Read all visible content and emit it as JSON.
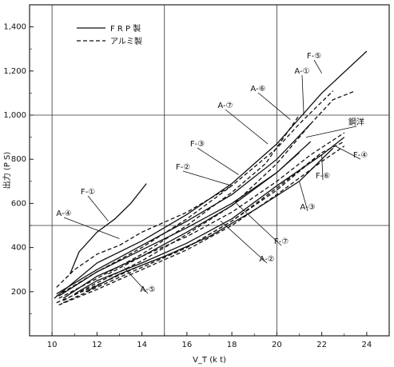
{
  "chart_data": {
    "type": "line",
    "xlabel": "V_T (k t)",
    "ylabel": "出力 (P S)",
    "xlim": [
      9,
      25
    ],
    "ylim": [
      0,
      1500
    ],
    "xticks": [
      "10",
      "12",
      "14",
      "16",
      "18",
      "20",
      "22",
      "24"
    ],
    "yticks": [
      "200",
      "400",
      "600",
      "800",
      "1,000",
      "1,200",
      "1,400"
    ],
    "grid": "major lines at x=10, 15, 20 and y=500, 1000",
    "legend": [
      {
        "label": "F R P 製",
        "style": "solid"
      },
      {
        "label": "アルミ製",
        "style": "dashed"
      }
    ],
    "annotations": [
      "F-⑤",
      "A-①",
      "A-⑥",
      "A-⑦",
      "F-③",
      "F-②",
      "F-①",
      "A-④",
      "A-⑤",
      "F-⑦",
      "A-②",
      "A-③",
      "F-⑥",
      "F-④",
      "鋼洋"
    ],
    "series": [
      {
        "name": "F-①",
        "style": "solid",
        "points": [
          [
            10.8,
            280
          ],
          [
            11.2,
            380
          ],
          [
            12,
            470
          ],
          [
            12.8,
            530
          ],
          [
            13.5,
            600
          ],
          [
            14.2,
            690
          ]
        ]
      },
      {
        "name": "F-⑤",
        "style": "solid",
        "points": [
          [
            10.1,
            170
          ],
          [
            12,
            330
          ],
          [
            14,
            430
          ],
          [
            16,
            550
          ],
          [
            18,
            690
          ],
          [
            20,
            870
          ],
          [
            22,
            1100
          ],
          [
            24,
            1290
          ]
        ]
      },
      {
        "name": "F-③",
        "style": "solid",
        "points": [
          [
            10.2,
            190
          ],
          [
            12,
            300
          ],
          [
            14,
            410
          ],
          [
            16,
            520
          ],
          [
            18,
            640
          ],
          [
            20,
            800
          ],
          [
            21.5,
            960
          ]
        ]
      },
      {
        "name": "F-②",
        "style": "solid",
        "points": [
          [
            10.3,
            180
          ],
          [
            12,
            290
          ],
          [
            14,
            390
          ],
          [
            16,
            490
          ],
          [
            18,
            600
          ],
          [
            20,
            740
          ],
          [
            21.5,
            880
          ]
        ]
      },
      {
        "name": "F-⑥",
        "style": "solid",
        "points": [
          [
            11,
            190
          ],
          [
            12,
            250
          ],
          [
            14,
            330
          ],
          [
            16,
            420
          ],
          [
            18,
            530
          ],
          [
            20,
            680
          ],
          [
            22,
            820
          ],
          [
            23,
            900
          ]
        ]
      },
      {
        "name": "F-④",
        "style": "solid",
        "points": [
          [
            11.5,
            200
          ],
          [
            13,
            280
          ],
          [
            15,
            360
          ],
          [
            17,
            450
          ],
          [
            19,
            570
          ],
          [
            21,
            700
          ],
          [
            22.5,
            850
          ]
        ]
      },
      {
        "name": "F-⑦",
        "style": "solid",
        "points": [
          [
            10.5,
            170
          ],
          [
            12,
            270
          ],
          [
            14,
            360
          ],
          [
            16,
            470
          ],
          [
            18,
            590
          ],
          [
            20,
            740
          ],
          [
            21,
            830
          ]
        ]
      },
      {
        "name": "A-④",
        "style": "dashed",
        "points": [
          [
            10.2,
            220
          ],
          [
            11,
            300
          ],
          [
            12,
            370
          ],
          [
            13,
            410
          ],
          [
            14,
            470
          ],
          [
            16,
            560
          ],
          [
            18,
            680
          ]
        ]
      },
      {
        "name": "A-①",
        "style": "dashed",
        "points": [
          [
            10.5,
            160
          ],
          [
            12,
            240
          ],
          [
            14,
            340
          ],
          [
            16,
            460
          ],
          [
            18,
            590
          ],
          [
            20,
            780
          ],
          [
            21.5,
            960
          ],
          [
            22.5,
            1070
          ],
          [
            23.5,
            1110
          ]
        ]
      },
      {
        "name": "A-⑥",
        "style": "dashed",
        "points": [
          [
            10.3,
            170
          ],
          [
            12,
            260
          ],
          [
            14,
            370
          ],
          [
            16,
            500
          ],
          [
            18,
            650
          ],
          [
            19.5,
            780
          ],
          [
            21,
            1000
          ]
        ]
      },
      {
        "name": "A-⑦",
        "style": "dashed",
        "points": [
          [
            10.2,
            180
          ],
          [
            12,
            290
          ],
          [
            14,
            400
          ],
          [
            16,
            530
          ],
          [
            18,
            680
          ],
          [
            20,
            850
          ],
          [
            21,
            960
          ],
          [
            22.5,
            1110
          ]
        ]
      },
      {
        "name": "A-⑤",
        "style": "dashed",
        "points": [
          [
            10.2,
            150
          ],
          [
            12,
            230
          ],
          [
            14,
            320
          ],
          [
            16,
            400
          ],
          [
            18,
            520
          ],
          [
            20,
            670
          ],
          [
            22,
            830
          ]
        ]
      },
      {
        "name": "A-②",
        "style": "dashed",
        "points": [
          [
            10.3,
            140
          ],
          [
            12,
            210
          ],
          [
            14,
            300
          ],
          [
            16,
            390
          ],
          [
            18,
            500
          ],
          [
            20,
            640
          ],
          [
            22,
            790
          ],
          [
            23,
            860
          ]
        ]
      },
      {
        "name": "A-③",
        "style": "dashed",
        "points": [
          [
            10.5,
            150
          ],
          [
            12,
            220
          ],
          [
            14,
            310
          ],
          [
            16,
            400
          ],
          [
            18,
            520
          ],
          [
            20,
            660
          ],
          [
            22,
            830
          ],
          [
            23,
            880
          ]
        ]
      },
      {
        "name": "鋼洋",
        "style": "dashed",
        "points": [
          [
            12.5,
            280
          ],
          [
            14,
            360
          ],
          [
            16,
            450
          ],
          [
            18,
            560
          ],
          [
            20,
            700
          ],
          [
            21.5,
            820
          ],
          [
            23,
            920
          ]
        ]
      }
    ]
  }
}
